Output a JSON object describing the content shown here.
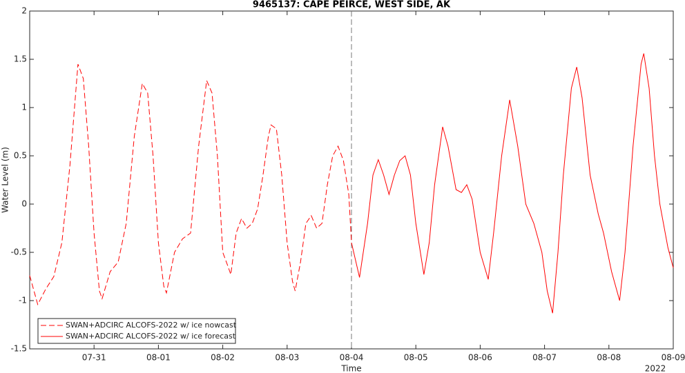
{
  "chart_data": {
    "type": "line",
    "title": "9465137: CAPE PEIRCE, WEST SIDE, AK",
    "xlabel": "Time",
    "ylabel": "Water Level (m)",
    "x_axis_year_label": "2022",
    "xlim": [
      "2022-07-30 00:00",
      "2022-08-09 00:00"
    ],
    "xticks": [
      {
        "value": "2022-07-31 00:00",
        "label": "07-31"
      },
      {
        "value": "2022-08-01 00:00",
        "label": "08-01"
      },
      {
        "value": "2022-08-02 00:00",
        "label": "08-02"
      },
      {
        "value": "2022-08-03 00:00",
        "label": "08-03"
      },
      {
        "value": "2022-08-04 00:00",
        "label": "08-04"
      },
      {
        "value": "2022-08-05 00:00",
        "label": "08-05"
      },
      {
        "value": "2022-08-06 00:00",
        "label": "08-06"
      },
      {
        "value": "2022-08-07 00:00",
        "label": "08-07"
      },
      {
        "value": "2022-08-08 00:00",
        "label": "08-08"
      },
      {
        "value": "2022-08-09 00:00",
        "label": "08-09"
      }
    ],
    "ylim": [
      -1.5,
      2
    ],
    "yticks": [
      -1.5,
      -1,
      -0.5,
      0,
      0.5,
      1,
      1.5,
      2
    ],
    "grid": false,
    "legend_position": "lower-left",
    "reference_line_x": "2022-08-04 00:00",
    "series": [
      {
        "name": "SWAN+ADCIRC ALCOFS-2022 w/ ice nowcast",
        "color": "#ff0000",
        "line_style": "dashed",
        "x": [
          "2022-07-30 00:00",
          "2022-07-30 03:00",
          "2022-07-30 06:00",
          "2022-07-30 09:00",
          "2022-07-30 12:00",
          "2022-07-30 15:00",
          "2022-07-30 18:00",
          "2022-07-30 20:00",
          "2022-07-30 22:00",
          "2022-07-31 00:00",
          "2022-07-31 02:00",
          "2022-07-31 03:00",
          "2022-07-31 06:00",
          "2022-07-31 09:00",
          "2022-07-31 12:00",
          "2022-07-31 15:00",
          "2022-07-31 18:00",
          "2022-07-31 20:00",
          "2022-07-31 22:00",
          "2022-08-01 00:00",
          "2022-08-01 02:00",
          "2022-08-01 03:00",
          "2022-08-01 06:00",
          "2022-08-01 09:00",
          "2022-08-01 12:00",
          "2022-08-01 15:00",
          "2022-08-01 18:00",
          "2022-08-01 20:00",
          "2022-08-01 22:00",
          "2022-08-02 00:00",
          "2022-08-02 02:00",
          "2022-08-02 03:00",
          "2022-08-02 05:00",
          "2022-08-02 07:00",
          "2022-08-02 09:00",
          "2022-08-02 11:00",
          "2022-08-02 13:00",
          "2022-08-02 15:00",
          "2022-08-02 17:00",
          "2022-08-02 18:00",
          "2022-08-02 20:00",
          "2022-08-02 22:00",
          "2022-08-03 00:00",
          "2022-08-03 02:00",
          "2022-08-03 03:00",
          "2022-08-03 05:00",
          "2022-08-03 07:00",
          "2022-08-03 09:00",
          "2022-08-03 11:00",
          "2022-08-03 13:00",
          "2022-08-03 15:00",
          "2022-08-03 17:00",
          "2022-08-03 19:00",
          "2022-08-03 21:00",
          "2022-08-03 23:00",
          "2022-08-04 00:00"
        ],
        "values": [
          -0.74,
          -1.04,
          -0.88,
          -0.75,
          -0.4,
          0.4,
          1.45,
          1.3,
          0.6,
          -0.3,
          -0.9,
          -0.98,
          -0.7,
          -0.6,
          -0.2,
          0.7,
          1.25,
          1.15,
          0.5,
          -0.4,
          -0.85,
          -0.92,
          -0.5,
          -0.36,
          -0.3,
          0.6,
          1.28,
          1.15,
          0.5,
          -0.5,
          -0.65,
          -0.73,
          -0.3,
          -0.15,
          -0.25,
          -0.2,
          -0.05,
          0.3,
          0.7,
          0.82,
          0.78,
          0.3,
          -0.4,
          -0.8,
          -0.9,
          -0.6,
          -0.2,
          -0.12,
          -0.25,
          -0.2,
          0.2,
          0.5,
          0.6,
          0.45,
          0.1,
          -0.4
        ]
      },
      {
        "name": "SWAN+ADCIRC ALCOFS-2022 w/ ice forecast",
        "color": "#ff0000",
        "line_style": "solid",
        "x": [
          "2022-08-04 00:00",
          "2022-08-04 03:00",
          "2022-08-04 06:00",
          "2022-08-04 08:00",
          "2022-08-04 10:00",
          "2022-08-04 12:00",
          "2022-08-04 14:00",
          "2022-08-04 16:00",
          "2022-08-04 18:00",
          "2022-08-04 20:00",
          "2022-08-04 22:00",
          "2022-08-05 00:00",
          "2022-08-05 03:00",
          "2022-08-05 05:00",
          "2022-08-05 07:00",
          "2022-08-05 10:00",
          "2022-08-05 12:00",
          "2022-08-05 15:00",
          "2022-08-05 17:00",
          "2022-08-05 19:00",
          "2022-08-05 21:00",
          "2022-08-06 00:00",
          "2022-08-06 03:00",
          "2022-08-06 05:00",
          "2022-08-06 08:00",
          "2022-08-06 11:00",
          "2022-08-06 14:00",
          "2022-08-06 17:00",
          "2022-08-06 20:00",
          "2022-08-06 23:00",
          "2022-08-07 01:00",
          "2022-08-07 03:00",
          "2022-08-07 05:00",
          "2022-08-07 07:00",
          "2022-08-07 10:00",
          "2022-08-07 12:00",
          "2022-08-07 14:00",
          "2022-08-07 17:00",
          "2022-08-07 20:00",
          "2022-08-07 22:00",
          "2022-08-08 01:00",
          "2022-08-08 04:00",
          "2022-08-08 06:00",
          "2022-08-08 09:00",
          "2022-08-08 12:00",
          "2022-08-08 13:00",
          "2022-08-08 15:00",
          "2022-08-08 17:00",
          "2022-08-08 19:00",
          "2022-08-08 22:00",
          "2022-08-09 00:00"
        ],
        "values": [
          -0.4,
          -0.76,
          -0.2,
          0.3,
          0.46,
          0.3,
          0.1,
          0.3,
          0.45,
          0.5,
          0.3,
          -0.2,
          -0.73,
          -0.4,
          0.2,
          0.8,
          0.6,
          0.15,
          0.12,
          0.2,
          0.05,
          -0.5,
          -0.78,
          -0.3,
          0.5,
          1.08,
          0.6,
          0,
          -0.2,
          -0.5,
          -0.9,
          -1.13,
          -0.5,
          0.3,
          1.2,
          1.42,
          1.1,
          0.3,
          -0.1,
          -0.3,
          -0.7,
          -1.0,
          -0.5,
          0.6,
          1.45,
          1.56,
          1.2,
          0.5,
          0,
          -0.45,
          -0.66
        ]
      }
    ]
  }
}
